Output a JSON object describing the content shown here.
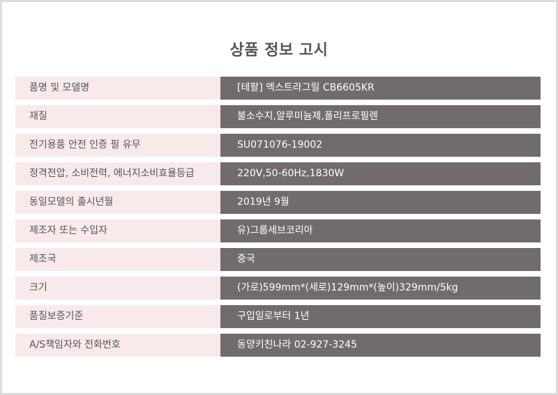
{
  "title": "상품 정보 고시",
  "rows": [
    {
      "label": "품명 및 모델명",
      "value": "[테팔]  엑스트라그릴 CB6605KR"
    },
    {
      "label": "재질",
      "value": "불소수지,알루미늄제,폴리프로필렌"
    },
    {
      "label": "전기용품 안전 인증 필 유무",
      "value": "SU071076-19002"
    },
    {
      "label": "정격전압, 소비전력, 에너지소비효율등급",
      "value": "220V,50-60Hz,1830W"
    },
    {
      "label": "동일모델의 출시년월",
      "value": "2019년 9월"
    },
    {
      "label": "제조자 또는 수입자",
      "value": "유)그룹세브코리아"
    },
    {
      "label": "제조국",
      "value": "중국"
    },
    {
      "label": "크기",
      "value": "(가로)599mm*(세로)129mm*(높이)329mm/5kg"
    },
    {
      "label": "품질보증기준",
      "value": "구입일로부터 1년"
    },
    {
      "label": "A/S책임자와 전화번호",
      "value": "동양키친나라 02-927-3245"
    }
  ],
  "colors": {
    "label_bg": "#f8eaea",
    "value_bg": "#716b6b",
    "border": "#dcdcdc"
  }
}
